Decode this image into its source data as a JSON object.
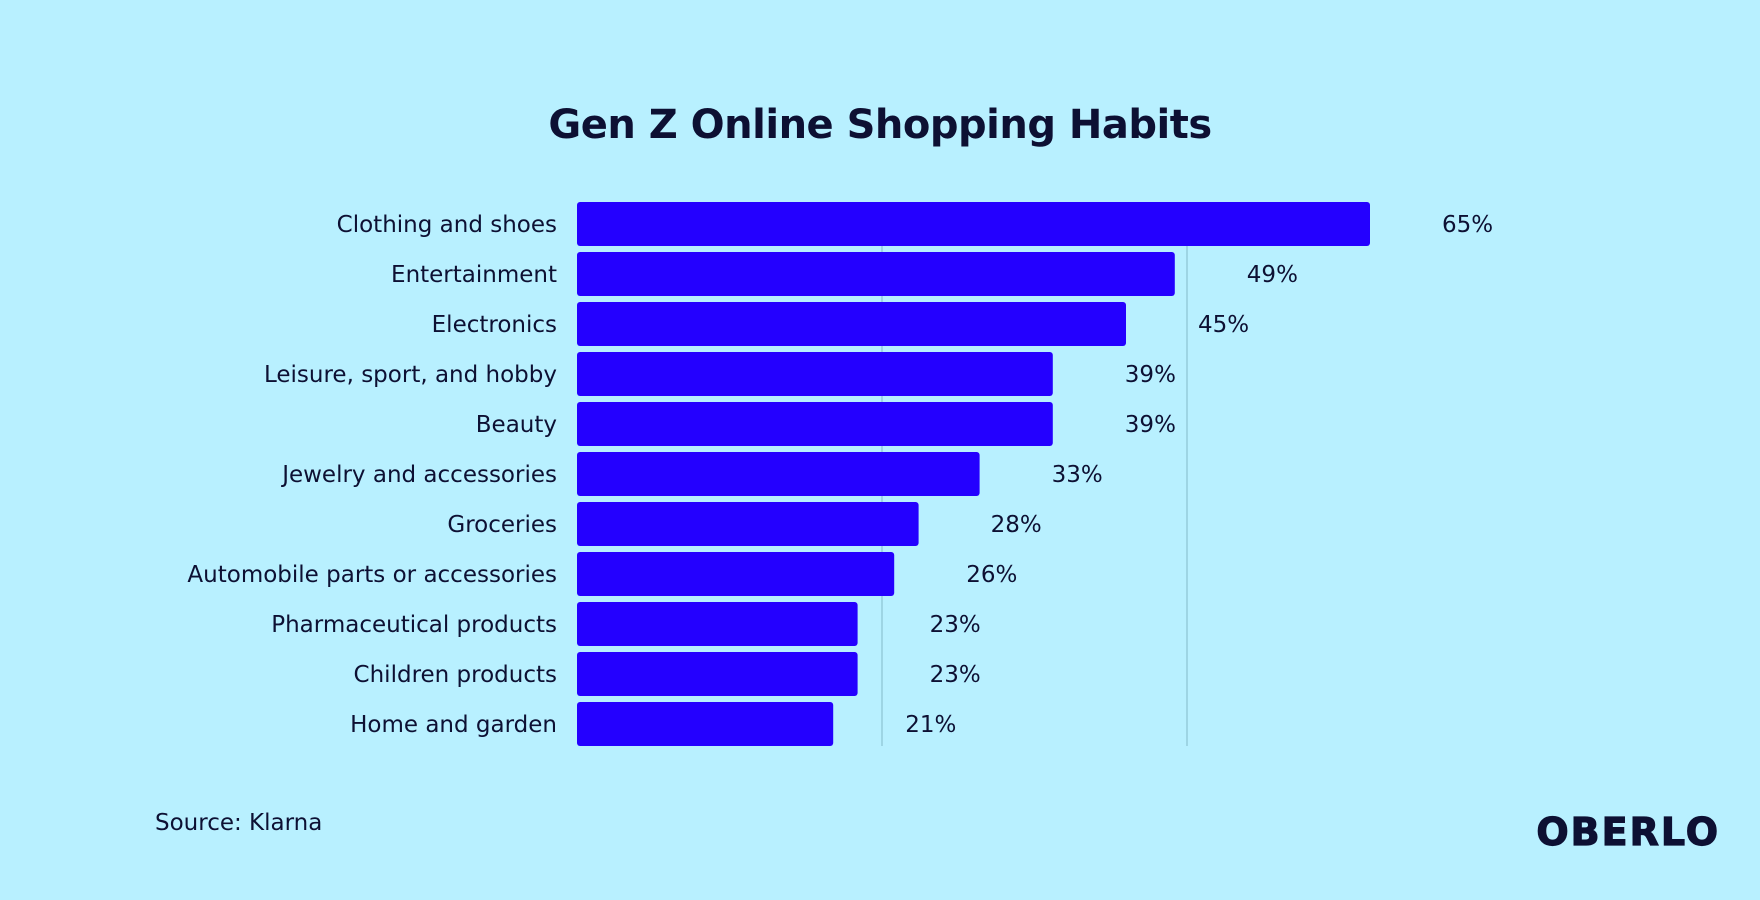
{
  "title": "Gen Z Online Shopping Habits",
  "source": "Source: Klarna",
  "brand": "OBERLO",
  "colors": {
    "background": "#b8f0ff",
    "bar": "#2400ff",
    "text": "#0d1033",
    "gridline": "#8cc3d2"
  },
  "chart_data": {
    "type": "bar",
    "orientation": "horizontal",
    "title": "Gen Z Online Shopping Habits",
    "categories": [
      "Clothing and shoes",
      "Entertainment",
      "Electronics",
      "Leisure, sport, and hobby",
      "Beauty",
      "Jewelry and accessories",
      "Groceries",
      "Automobile parts or accessories",
      "Pharmaceutical products",
      "Children products",
      "Home and garden"
    ],
    "values": [
      65,
      49,
      45,
      39,
      39,
      33,
      28,
      26,
      23,
      23,
      21
    ],
    "value_labels": [
      "65%",
      "49%",
      "45%",
      "39%",
      "39%",
      "33%",
      "28%",
      "26%",
      "23%",
      "23%",
      "21%"
    ],
    "unit": "%",
    "xlim": [
      0,
      65
    ],
    "gridlines": [
      25,
      50
    ],
    "grid": true,
    "legend": "none"
  }
}
